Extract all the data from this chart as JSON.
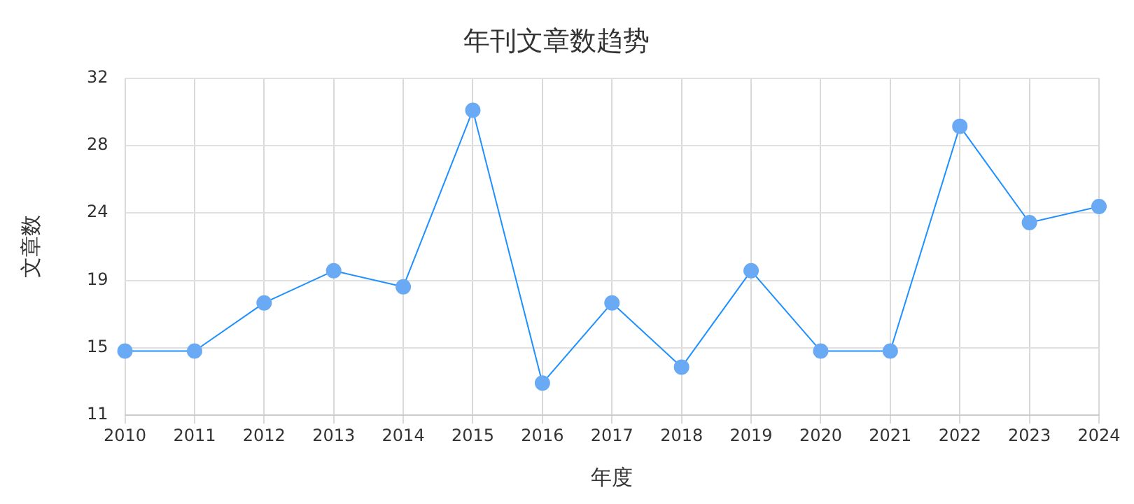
{
  "chart_data": {
    "type": "line",
    "title": "年刊文章数趋势",
    "xlabel": "年度",
    "ylabel": "文章数",
    "categories": [
      "2010",
      "2011",
      "2012",
      "2013",
      "2014",
      "2015",
      "2016",
      "2017",
      "2018",
      "2019",
      "2020",
      "2021",
      "2022",
      "2023",
      "2024"
    ],
    "series": [
      {
        "color": "#1e90ff",
        "values": [
          15,
          15,
          18,
          20,
          19,
          30,
          13,
          18,
          14,
          20,
          15,
          15,
          29,
          23,
          24
        ]
      }
    ],
    "ylim": [
      11,
      32
    ],
    "yticks": [
      11,
      {
        "value": 15.2,
        "label": "15"
      },
      {
        "value": 19.4,
        "label": "19"
      },
      {
        "value": 23.6,
        "label": "24"
      },
      {
        "value": 27.8,
        "label": "28"
      },
      32
    ],
    "grid": true,
    "marker": "circle",
    "line_style": "solid",
    "legend": false
  }
}
